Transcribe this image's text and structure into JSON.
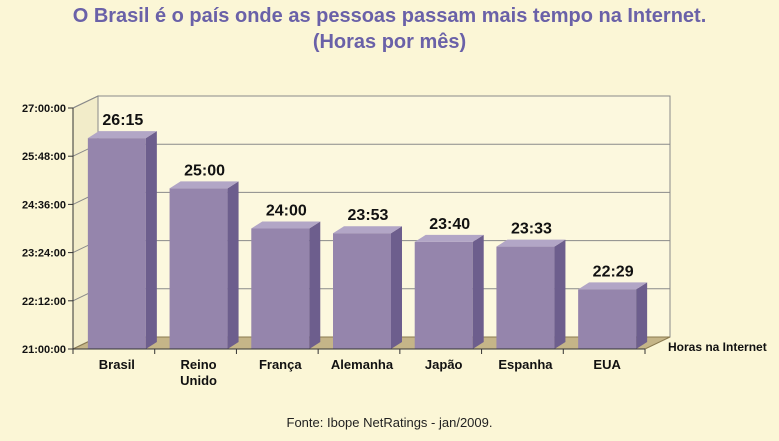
{
  "header": {
    "title": "O Brasil é o país onde as pessoas passam mais tempo na Internet.",
    "subtitle": "(Horas por mês)"
  },
  "footer": {
    "source": "Fonte: Ibope NetRatings - jan/2009."
  },
  "colors": {
    "background": "#fbf6d6",
    "title": "#6a61a8",
    "bar_front": "#9585ac",
    "bar_top": "#b2a6c6",
    "bar_side": "#6d5e8d",
    "floor": "#c5b588",
    "wall": "#fcf8de"
  },
  "chart_data": {
    "type": "bar",
    "title": "O Brasil é o país onde as pessoas passam mais tempo na Internet.",
    "subtitle": "(Horas por mês)",
    "series_label": "Horas na Internet",
    "categories": [
      [
        "Brasil"
      ],
      [
        "Reino",
        "Unido"
      ],
      [
        "França"
      ],
      [
        "Alemanha"
      ],
      [
        "Japão"
      ],
      [
        "Espanha"
      ],
      [
        "EUA"
      ]
    ],
    "values": [
      26.25,
      25.0,
      24.0,
      23.883,
      23.667,
      23.55,
      22.483
    ],
    "value_labels": [
      "26:15",
      "25:00",
      "24:00",
      "23:53",
      "23:40",
      "23:33",
      "22:29"
    ],
    "y_ticks": [
      21.0,
      22.2,
      23.4,
      24.6,
      25.8,
      27.0
    ],
    "y_tick_labels": [
      "21:00:00",
      "22:12:00",
      "23:24:00",
      "24:36:00",
      "25:48:00",
      "27:00:00"
    ],
    "ylim": [
      21.0,
      27.0
    ],
    "grid": true,
    "three_d": true
  }
}
